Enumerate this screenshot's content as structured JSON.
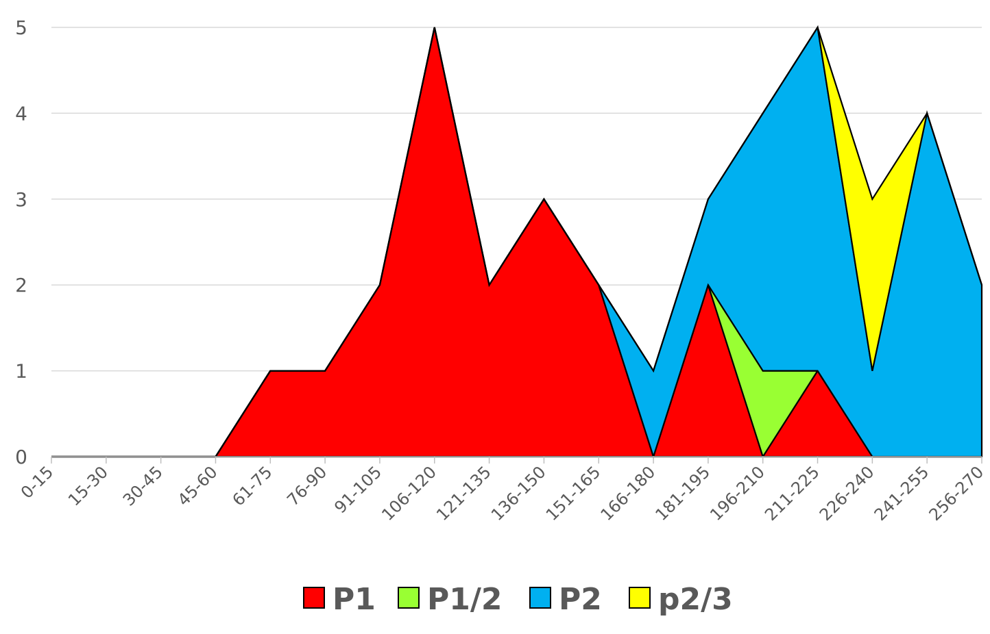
{
  "chart_data": {
    "type": "area",
    "categories": [
      "0-15",
      "15-30",
      "30-45",
      "45-60",
      "61-75",
      "76-90",
      "91-105",
      "106-120",
      "121-135",
      "136-150",
      "151-165",
      "166-180",
      "181-195",
      "196-210",
      "211-225",
      "226-240",
      "241-255",
      "256-270"
    ],
    "series": [
      {
        "name": "P1",
        "color": "#ff0000",
        "values": [
          0,
          0,
          0,
          0,
          1,
          1,
          2,
          5,
          2,
          3,
          2,
          0,
          2,
          0,
          1,
          0,
          0,
          0
        ]
      },
      {
        "name": "P1/2",
        "color": "#99ff33",
        "values": [
          0,
          0,
          0,
          0,
          0,
          0,
          0,
          0,
          0,
          0,
          0,
          0,
          0,
          1,
          0,
          0,
          0,
          0
        ]
      },
      {
        "name": "P2",
        "color": "#00b0f0",
        "values": [
          0,
          0,
          0,
          0,
          0,
          0,
          0,
          0,
          0,
          0,
          0,
          1,
          1,
          3,
          4,
          1,
          4,
          2
        ]
      },
      {
        "name": "p2/3",
        "color": "#ffff00",
        "values": [
          0,
          0,
          0,
          0,
          0,
          0,
          0,
          0,
          0,
          0,
          0,
          0,
          0,
          0,
          0,
          2,
          0,
          0
        ]
      }
    ],
    "ylim": [
      0,
      5
    ],
    "yticks": [
      0,
      1,
      2,
      3,
      4,
      5
    ],
    "stacked": true,
    "grid": true,
    "legend_position": "bottom",
    "title": "",
    "xlabel": "",
    "ylabel": ""
  }
}
